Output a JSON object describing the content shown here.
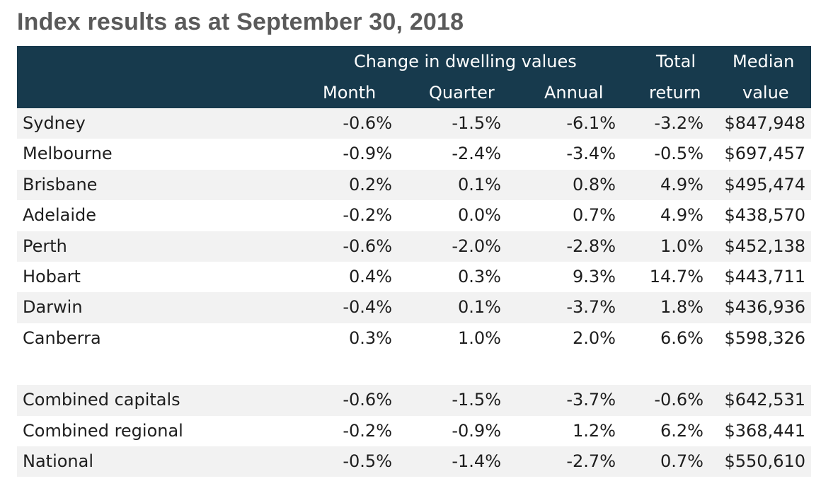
{
  "title": "Index results as at September 30, 2018",
  "chart_data": {
    "type": "table",
    "title": "Index results as at September 30, 2018",
    "column_group": "Change in dwelling values",
    "columns": [
      "Month",
      "Quarter",
      "Annual",
      "Total return",
      "Median value"
    ],
    "header_labels": {
      "month": "Month",
      "quarter": "Quarter",
      "annual": "Annual",
      "total_line1": "Total",
      "total_line2": "return",
      "median_line1": "Median",
      "median_line2": "value"
    },
    "rows": [
      {
        "name": "Sydney",
        "month": "-0.6%",
        "quarter": "-1.5%",
        "annual": "-6.1%",
        "total": "-3.2%",
        "median": "$847,948"
      },
      {
        "name": "Melbourne",
        "month": "-0.9%",
        "quarter": "-2.4%",
        "annual": "-3.4%",
        "total": "-0.5%",
        "median": "$697,457"
      },
      {
        "name": "Brisbane",
        "month": "0.2%",
        "quarter": "0.1%",
        "annual": "0.8%",
        "total": "4.9%",
        "median": "$495,474"
      },
      {
        "name": "Adelaide",
        "month": "-0.2%",
        "quarter": "0.0%",
        "annual": "0.7%",
        "total": "4.9%",
        "median": "$438,570"
      },
      {
        "name": "Perth",
        "month": "-0.6%",
        "quarter": "-2.0%",
        "annual": "-2.8%",
        "total": "1.0%",
        "median": "$452,138"
      },
      {
        "name": "Hobart",
        "month": "0.4%",
        "quarter": "0.3%",
        "annual": "9.3%",
        "total": "14.7%",
        "median": "$443,711"
      },
      {
        "name": "Darwin",
        "month": "-0.4%",
        "quarter": "0.1%",
        "annual": "-3.7%",
        "total": "1.8%",
        "median": "$436,936"
      },
      {
        "name": "Canberra",
        "month": "0.3%",
        "quarter": "1.0%",
        "annual": "2.0%",
        "total": "6.6%",
        "median": "$598,326"
      }
    ],
    "summary_rows": [
      {
        "name": "Combined capitals",
        "month": "-0.6%",
        "quarter": "-1.5%",
        "annual": "-3.7%",
        "total": "-0.6%",
        "median": "$642,531"
      },
      {
        "name": "Combined regional",
        "month": "-0.2%",
        "quarter": "-0.9%",
        "annual": "1.2%",
        "total": "6.2%",
        "median": "$368,441"
      },
      {
        "name": "National",
        "month": "-0.5%",
        "quarter": "-1.4%",
        "annual": "-2.7%",
        "total": "0.7%",
        "median": "$550,610"
      }
    ]
  },
  "colors": {
    "header_bg": "#173a4d",
    "header_text": "#ffffff",
    "row_shade": "#f2f2f2",
    "title_text": "#5a5a5a"
  }
}
